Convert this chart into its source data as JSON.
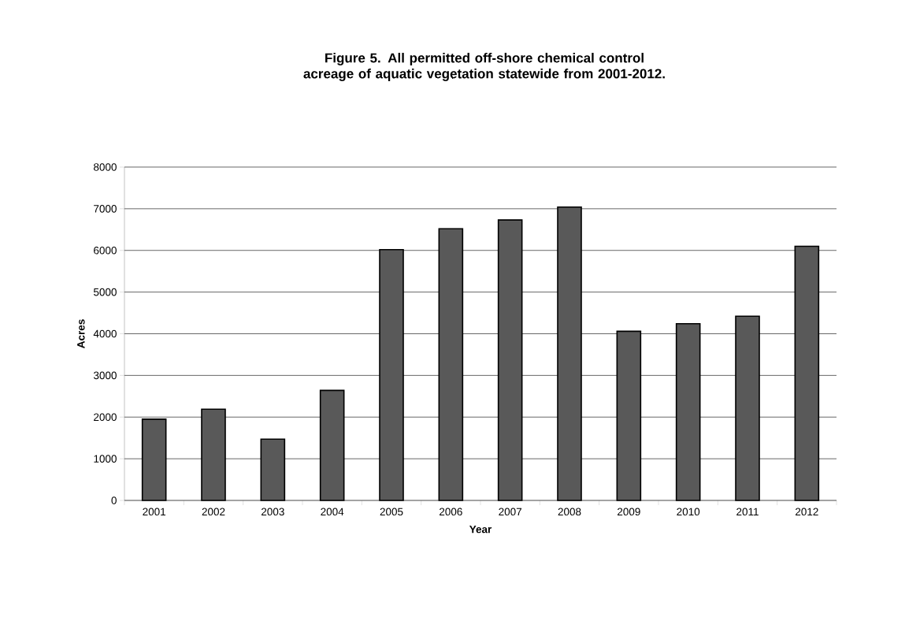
{
  "chart_data": {
    "type": "bar",
    "title": "Figure 5. All permitted off-shore chemical control acreage of aquatic vegetation statewide from 2001-2012.",
    "xlabel": "Year",
    "ylabel": "Acres",
    "categories": [
      "2001",
      "2002",
      "2003",
      "2004",
      "2005",
      "2006",
      "2007",
      "2008",
      "2009",
      "2010",
      "2011",
      "2012"
    ],
    "values": [
      1950,
      2190,
      1470,
      2640,
      6020,
      6520,
      6730,
      7040,
      4060,
      4240,
      4420,
      6100
    ],
    "color": "#595959",
    "ylim": [
      0,
      8000
    ],
    "yticks": [
      0,
      1000,
      2000,
      3000,
      4000,
      5000,
      6000,
      7000,
      8000
    ],
    "grid": "y"
  }
}
